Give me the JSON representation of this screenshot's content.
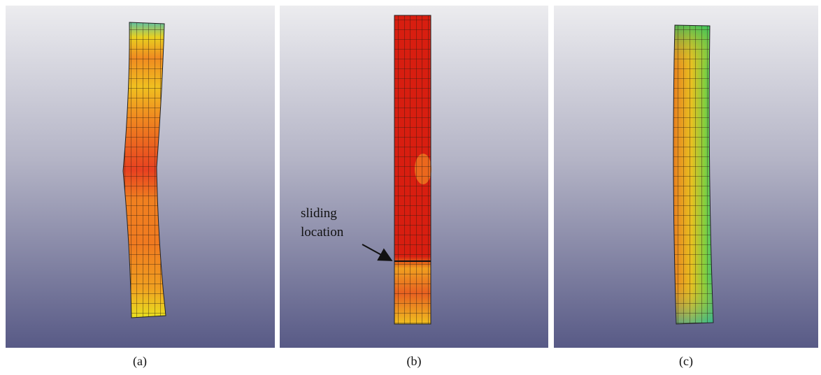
{
  "panels": [
    {
      "label": "(a)"
    },
    {
      "label": "(b)",
      "annotation": [
        "sliding",
        "location"
      ]
    },
    {
      "label": "(c)"
    }
  ]
}
